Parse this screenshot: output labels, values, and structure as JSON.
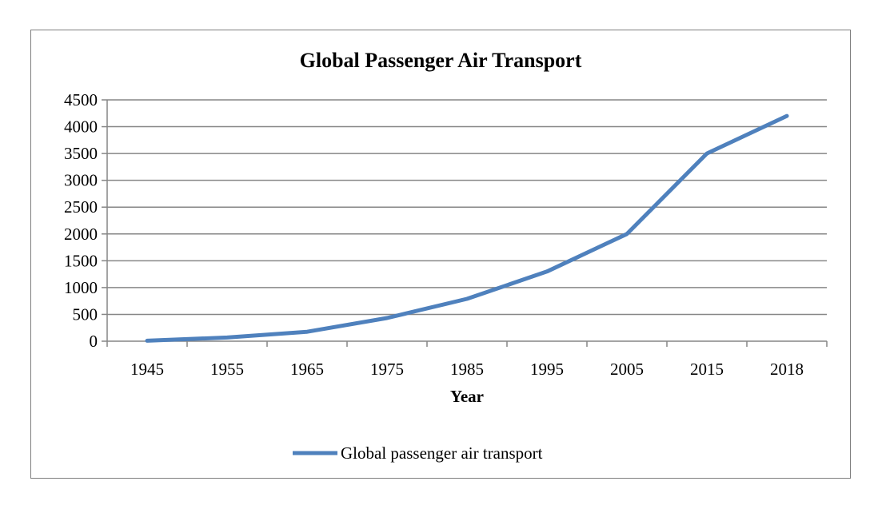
{
  "chart_data": {
    "type": "line",
    "title": "Global Passenger Air Transport",
    "xlabel": "Year",
    "ylabel": "",
    "categories": [
      "1945",
      "1955",
      "1965",
      "1975",
      "1985",
      "1995",
      "2005",
      "2015",
      "2018"
    ],
    "series": [
      {
        "name": "Global passenger air transport",
        "color": "#4f81bd",
        "values": [
          9,
          68,
          176,
          432,
          789,
          1300,
          2000,
          3500,
          4200
        ]
      }
    ],
    "ylim": [
      0,
      4500
    ],
    "yticks": [
      0,
      500,
      1000,
      1500,
      2000,
      2500,
      3000,
      3500,
      4000,
      4500
    ],
    "grid": true,
    "legend_position": "bottom",
    "gridline_color": "#868686"
  }
}
